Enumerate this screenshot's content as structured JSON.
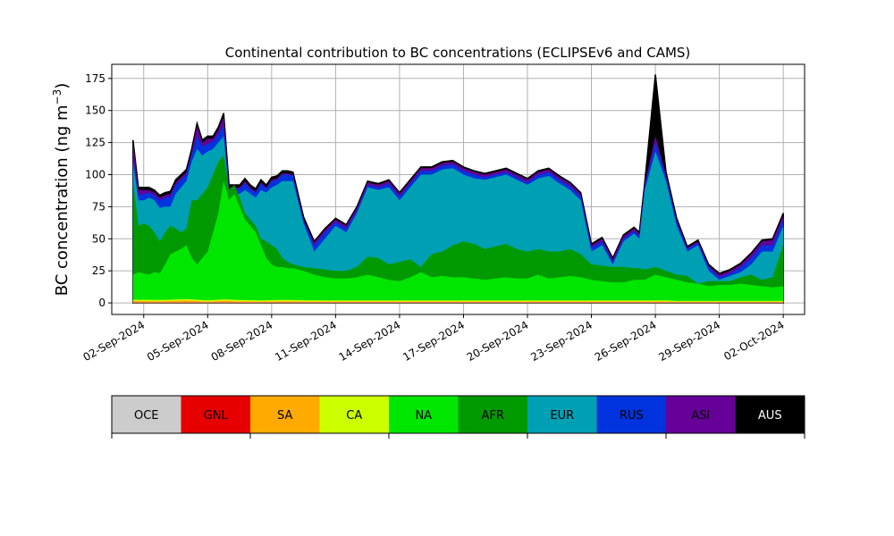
{
  "chart_data": {
    "type": "area",
    "title": "Continental contribution to BC concentrations (ECLIPSEv6 and CAMS)",
    "ylabel": "BC concentration (ng m",
    "ylabel_sup": "−3",
    "ylabel_close": ")",
    "xlabel": "",
    "ylim": [
      -9,
      186
    ],
    "yticks": [
      0,
      25,
      50,
      75,
      100,
      125,
      150,
      175
    ],
    "xlim": [
      "2024-08-31T12:00",
      "2024-10-03T00:00"
    ],
    "xticks": [
      "2024-09-02",
      "2024-09-05",
      "2024-09-08",
      "2024-09-11",
      "2024-09-14",
      "2024-09-17",
      "2024-09-20",
      "2024-09-23",
      "2024-09-26",
      "2024-09-29",
      "2024-10-02"
    ],
    "xtick_labels": [
      "02-Sep-2024",
      "05-Sep-2024",
      "08-Sep-2024",
      "11-Sep-2024",
      "14-Sep-2024",
      "17-Sep-2024",
      "20-Sep-2024",
      "23-Sep-2024",
      "26-Sep-2024",
      "29-Sep-2024",
      "02-Oct-2024"
    ],
    "grid": true,
    "legend_placement": "below (color bar)",
    "series_order": [
      "OCE",
      "GNL",
      "SA",
      "CA",
      "NA",
      "AFR",
      "EUR",
      "RUS",
      "ASI",
      "AUS"
    ],
    "colors": {
      "OCE": "#cccccc",
      "GNL": "#e60000",
      "SA": "#ffaa00",
      "CA": "#ccff00",
      "NA": "#00e600",
      "AFR": "#009900",
      "EUR": "#00a0b4",
      "RUS": "#0033dd",
      "ASI": "#660099",
      "AUS": "#000000"
    },
    "cumulative": {
      "x": [
        "2024-09-01T12:00",
        "2024-09-01T18:00",
        "2024-09-02T00:00",
        "2024-09-02T06:00",
        "2024-09-02T12:00",
        "2024-09-02T18:00",
        "2024-09-03T00:00",
        "2024-09-03T06:00",
        "2024-09-03T12:00",
        "2024-09-03T18:00",
        "2024-09-04T00:00",
        "2024-09-04T06:00",
        "2024-09-04T12:00",
        "2024-09-04T18:00",
        "2024-09-05T00:00",
        "2024-09-05T06:00",
        "2024-09-05T12:00",
        "2024-09-05T18:00",
        "2024-09-06T00:00",
        "2024-09-06T06:00",
        "2024-09-06T12:00",
        "2024-09-06T18:00",
        "2024-09-07T00:00",
        "2024-09-07T06:00",
        "2024-09-07T12:00",
        "2024-09-07T18:00",
        "2024-09-08T00:00",
        "2024-09-08T06:00",
        "2024-09-08T12:00",
        "2024-09-08T18:00",
        "2024-09-09T00:00",
        "2024-09-09T12:00",
        "2024-09-10T00:00",
        "2024-09-10T12:00",
        "2024-09-11T00:00",
        "2024-09-11T12:00",
        "2024-09-12T00:00",
        "2024-09-12T12:00",
        "2024-09-13T00:00",
        "2024-09-13T12:00",
        "2024-09-14T00:00",
        "2024-09-14T12:00",
        "2024-09-15T00:00",
        "2024-09-15T12:00",
        "2024-09-16T00:00",
        "2024-09-16T12:00",
        "2024-09-17T00:00",
        "2024-09-17T12:00",
        "2024-09-18T00:00",
        "2024-09-18T12:00",
        "2024-09-19T00:00",
        "2024-09-19T12:00",
        "2024-09-20T00:00",
        "2024-09-20T12:00",
        "2024-09-21T00:00",
        "2024-09-21T12:00",
        "2024-09-22T00:00",
        "2024-09-22T12:00",
        "2024-09-23T00:00",
        "2024-09-23T12:00",
        "2024-09-24T00:00",
        "2024-09-24T12:00",
        "2024-09-25T00:00",
        "2024-09-25T06:00",
        "2024-09-25T12:00",
        "2024-09-26T00:00",
        "2024-09-26T12:00",
        "2024-09-27T00:00",
        "2024-09-27T12:00",
        "2024-09-28T00:00",
        "2024-09-28T12:00",
        "2024-09-29T00:00",
        "2024-09-29T12:00",
        "2024-09-30T00:00",
        "2024-09-30T12:00",
        "2024-10-01T00:00",
        "2024-10-01T12:00",
        "2024-10-02T00:00"
      ],
      "OCE": [
        0.3,
        0.3,
        0.3,
        0.3,
        0.3,
        0.3,
        0.3,
        0.3,
        0.3,
        0.3,
        0.3,
        0.3,
        0.3,
        0.3,
        0.3,
        0.3,
        0.3,
        0.3,
        0.3,
        0.3,
        0.3,
        0.3,
        0.3,
        0.3,
        0.3,
        0.3,
        0.3,
        0.3,
        0.3,
        0.3,
        0.3,
        0.3,
        0.3,
        0.3,
        0.3,
        0.3,
        0.3,
        0.3,
        0.3,
        0.3,
        0.3,
        0.3,
        0.3,
        0.3,
        0.3,
        0.3,
        0.3,
        0.3,
        0.3,
        0.3,
        0.3,
        0.3,
        0.3,
        0.3,
        0.3,
        0.3,
        0.3,
        0.3,
        0.3,
        0.3,
        0.3,
        0.3,
        0.3,
        0.3,
        0.3,
        0.3,
        0.3,
        0.3,
        0.3,
        0.3,
        0.3,
        0.3,
        0.3,
        0.3,
        0.3,
        0.3,
        0.3,
        0.3
      ],
      "GNL": [
        0.6,
        0.6,
        0.6,
        0.6,
        0.6,
        0.6,
        0.6,
        0.6,
        0.6,
        0.6,
        0.6,
        0.6,
        0.6,
        0.6,
        0.6,
        0.6,
        0.6,
        0.6,
        0.6,
        0.6,
        0.6,
        0.6,
        0.6,
        0.6,
        0.6,
        0.6,
        0.6,
        0.6,
        0.6,
        0.6,
        0.6,
        0.6,
        0.6,
        0.6,
        0.6,
        0.6,
        0.6,
        0.6,
        0.6,
        0.6,
        0.6,
        0.6,
        0.6,
        0.6,
        0.6,
        0.6,
        0.6,
        0.6,
        0.6,
        0.6,
        0.6,
        0.6,
        0.6,
        0.6,
        0.6,
        0.6,
        0.6,
        0.6,
        0.6,
        0.6,
        0.6,
        0.6,
        0.6,
        0.6,
        0.6,
        0.6,
        0.6,
        0.6,
        0.6,
        0.6,
        0.6,
        0.6,
        0.6,
        0.6,
        0.6,
        0.6,
        0.6,
        0.6
      ],
      "SA": [
        1.5,
        1.5,
        1.4,
        1.4,
        1.3,
        1.3,
        1.4,
        1.5,
        1.6,
        1.8,
        2.0,
        1.8,
        1.5,
        1.2,
        1.0,
        1.2,
        1.5,
        1.8,
        1.6,
        1.4,
        1.2,
        1.2,
        1.1,
        1.0,
        1.0,
        1.1,
        1.2,
        1.2,
        1.3,
        1.3,
        1.2,
        1.1,
        1.0,
        1.0,
        1.0,
        1.0,
        1.0,
        1.0,
        1.0,
        1.0,
        1.0,
        1.0,
        1.0,
        1.0,
        1.0,
        1.0,
        1.0,
        1.0,
        1.0,
        1.0,
        1.0,
        1.0,
        1.0,
        1.0,
        1.0,
        1.0,
        1.0,
        1.0,
        1.0,
        1.0,
        1.0,
        1.0,
        1.0,
        1.0,
        1.0,
        1.0,
        1.0,
        0.8,
        0.8,
        0.8,
        0.8,
        0.8,
        0.8,
        0.8,
        0.8,
        0.8,
        0.8,
        0.8
      ],
      "CA": [
        2.5,
        2.5,
        2.4,
        2.4,
        2.3,
        2.3,
        2.4,
        2.5,
        2.6,
        2.8,
        3.0,
        2.8,
        2.5,
        2.2,
        2.0,
        2.2,
        2.5,
        2.8,
        2.6,
        2.4,
        2.2,
        2.2,
        2.1,
        2.0,
        2.0,
        2.1,
        2.2,
        2.2,
        2.3,
        2.3,
        2.2,
        2.1,
        2.0,
        2.0,
        2.0,
        2.0,
        2.0,
        2.0,
        2.0,
        2.0,
        2.0,
        2.0,
        2.0,
        2.0,
        2.0,
        2.0,
        2.0,
        2.0,
        2.0,
        2.0,
        2.0,
        2.0,
        2.0,
        2.0,
        2.0,
        2.0,
        2.0,
        2.0,
        2.0,
        2.0,
        2.0,
        2.0,
        2.0,
        2.0,
        2.0,
        2.0,
        2.0,
        1.5,
        1.5,
        1.5,
        1.5,
        1.5,
        1.5,
        1.5,
        1.5,
        1.5,
        1.5,
        1.5
      ],
      "NA": [
        22,
        24,
        23,
        22,
        24,
        23,
        30,
        38,
        40,
        42,
        45,
        35,
        30,
        35,
        40,
        55,
        70,
        95,
        80,
        85,
        75,
        65,
        60,
        55,
        45,
        35,
        30,
        28,
        28,
        27,
        27,
        25,
        22,
        20,
        19,
        19,
        20,
        22,
        20,
        18,
        17,
        20,
        24,
        20,
        21,
        20,
        20,
        19,
        18,
        19,
        20,
        19,
        19,
        22,
        19,
        20,
        21,
        20,
        18,
        17,
        16,
        16,
        18,
        18,
        18,
        22,
        20,
        18,
        16,
        15,
        13,
        14,
        14,
        15,
        14,
        13,
        12,
        13
      ],
      "AFR": [
        95,
        60,
        62,
        60,
        55,
        48,
        55,
        60,
        58,
        55,
        58,
        80,
        80,
        85,
        90,
        100,
        110,
        115,
        88,
        92,
        82,
        70,
        65,
        60,
        50,
        48,
        45,
        42,
        35,
        32,
        30,
        28,
        27,
        26,
        25,
        25,
        28,
        36,
        35,
        30,
        32,
        34,
        28,
        38,
        40,
        45,
        48,
        46,
        42,
        44,
        46,
        42,
        40,
        42,
        40,
        40,
        42,
        38,
        30,
        29,
        28,
        28,
        27,
        27,
        26,
        28,
        25,
        22,
        21,
        15,
        17,
        17,
        17,
        20,
        22,
        18,
        20,
        46
      ],
      "EUR": [
        110,
        80,
        80,
        82,
        80,
        74,
        75,
        75,
        85,
        90,
        95,
        110,
        120,
        115,
        118,
        120,
        125,
        130,
        85,
        85,
        85,
        88,
        85,
        82,
        88,
        86,
        90,
        92,
        95,
        95,
        95,
        62,
        40,
        50,
        60,
        55,
        70,
        90,
        88,
        90,
        80,
        90,
        100,
        100,
        104,
        105,
        100,
        97,
        96,
        98,
        100,
        96,
        92,
        97,
        99,
        93,
        88,
        80,
        40,
        45,
        30,
        48,
        54,
        50,
        88,
        118,
        95,
        60,
        40,
        45,
        25,
        18,
        21,
        24,
        30,
        40,
        40,
        60
      ],
      "RUS": [
        115,
        84,
        85,
        86,
        84,
        80,
        82,
        83,
        92,
        96,
        100,
        116,
        130,
        122,
        124,
        126,
        132,
        138,
        88,
        89,
        89,
        93,
        89,
        86,
        93,
        89,
        95,
        96,
        100,
        100,
        99,
        64,
        45,
        55,
        63,
        58,
        72,
        92,
        90,
        93,
        83,
        93,
        103,
        103,
        107,
        108,
        103,
        100,
        98,
        100,
        102,
        98,
        94,
        100,
        102,
        96,
        91,
        83,
        43,
        48,
        32,
        50,
        56,
        52,
        91,
        125,
        98,
        63,
        42,
        47,
        28,
        20,
        23,
        28,
        35,
        45,
        45,
        65
      ],
      "ASI": [
        125,
        88,
        88,
        88,
        86,
        82,
        84,
        85,
        94,
        98,
        102,
        118,
        138,
        125,
        128,
        128,
        135,
        145,
        90,
        90,
        90,
        95,
        90,
        87,
        94,
        90,
        96,
        97,
        101,
        101,
        100,
        65,
        47,
        57,
        65,
        60,
        74,
        94,
        92,
        95,
        85,
        95,
        105,
        105,
        109,
        110,
        105,
        102,
        100,
        102,
        104,
        100,
        96,
        102,
        104,
        98,
        93,
        85,
        45,
        50,
        34,
        52,
        58,
        54,
        93,
        130,
        100,
        65,
        43,
        48,
        29,
        22,
        25,
        30,
        38,
        48,
        49,
        68
      ],
      "AUS": [
        127,
        90,
        90,
        90,
        88,
        84,
        86,
        87,
        96,
        100,
        104,
        120,
        140,
        127,
        130,
        130,
        137,
        148,
        92,
        92,
        92,
        97,
        92,
        89,
        96,
        92,
        98,
        99,
        103,
        103,
        102,
        67,
        48,
        58,
        66,
        61,
        75,
        95,
        93,
        96,
        86,
        96,
        106,
        106,
        110,
        111,
        106,
        103,
        101,
        103,
        105,
        101,
        97,
        103,
        105,
        99,
        94,
        86,
        46,
        51,
        35,
        53,
        59,
        55,
        94,
        178,
        102,
        66,
        44,
        49,
        30,
        23,
        26,
        31,
        39,
        49,
        50,
        70
      ]
    },
    "color_bar_labels": [
      "OCE",
      "GNL",
      "SA",
      "CA",
      "NA",
      "AFR",
      "EUR",
      "RUS",
      "ASI",
      "AUS"
    ],
    "color_bar_label_colors": {
      "OCE": "#000000",
      "GNL": "#000000",
      "SA": "#000000",
      "CA": "#000000",
      "NA": "#000000",
      "AFR": "#000000",
      "EUR": "#000000",
      "RUS": "#000000",
      "ASI": "#000000",
      "AUS": "#ffffff"
    }
  }
}
